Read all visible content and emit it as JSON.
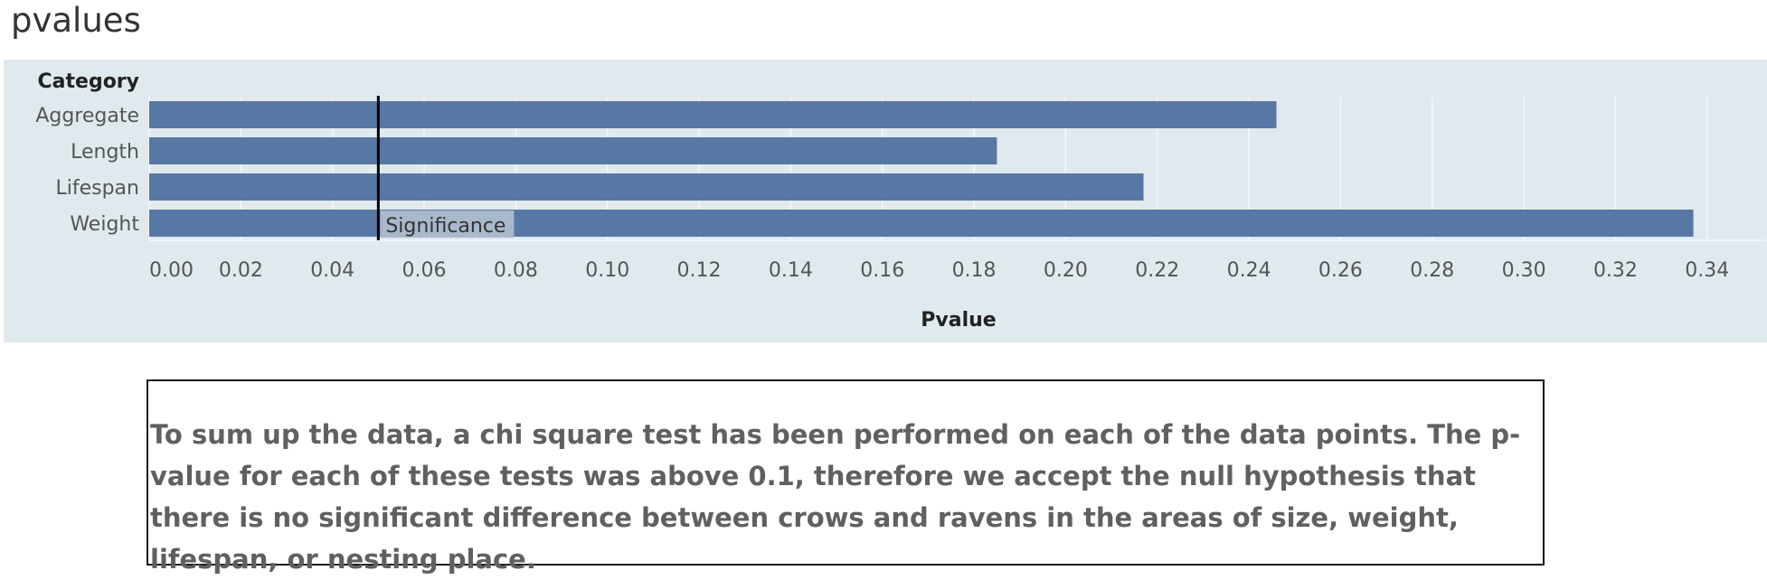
{
  "page": {
    "title": "pvalues"
  },
  "chart_data": {
    "type": "bar",
    "orientation": "horizontal",
    "row_header": "Category",
    "categories": [
      "Aggregate",
      "Length",
      "Lifespan",
      "Weight"
    ],
    "values": [
      0.246,
      0.185,
      0.217,
      0.337
    ],
    "xlabel": "Pvalue",
    "xlim": [
      0,
      0.35
    ],
    "xticks": [
      "0.00",
      "0.02",
      "0.04",
      "0.06",
      "0.08",
      "0.10",
      "0.12",
      "0.14",
      "0.16",
      "0.18",
      "0.20",
      "0.22",
      "0.24",
      "0.26",
      "0.28",
      "0.30",
      "0.32",
      "0.34"
    ],
    "reference_line": {
      "value": 0.05,
      "label": "Significance"
    },
    "grid": "vertical",
    "colors": {
      "bar": "#5778a4",
      "background": "#e0e9ee",
      "reference_line": "#000000",
      "label_box": "#a9b9cc"
    }
  },
  "description": {
    "text": "To sum up the data, a chi square test has been performed on each of the data points. The p-value for each of these tests was above 0.1, therefore we accept the null hypothesis that there is no significant difference between crows and ravens in the areas of size, weight, lifespan, or nesting place."
  }
}
